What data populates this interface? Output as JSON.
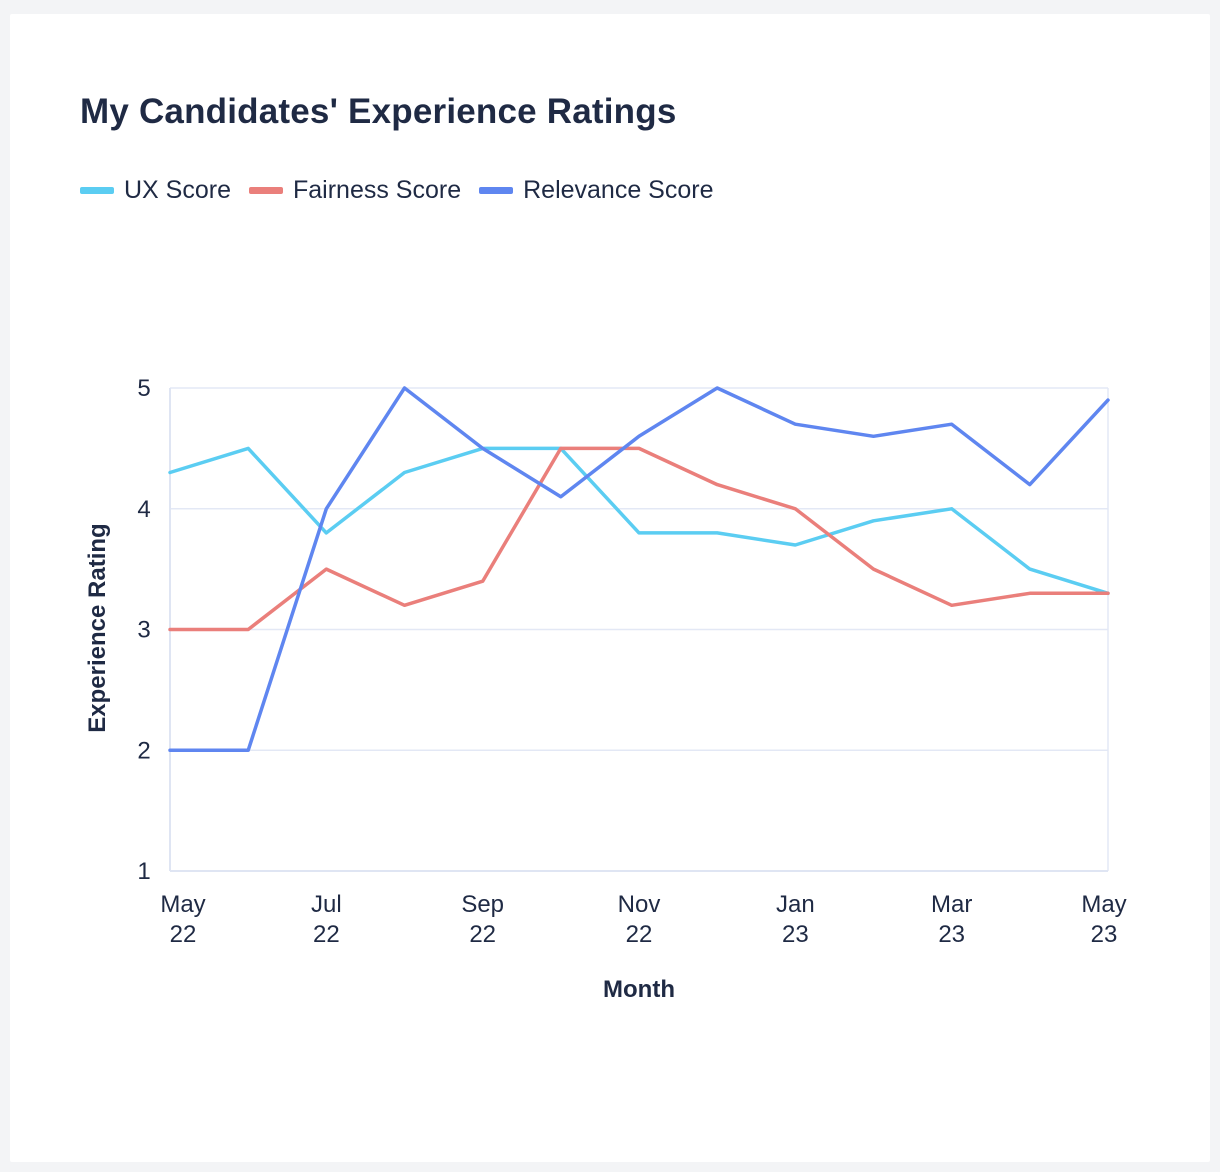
{
  "chart_data": {
    "type": "line",
    "title": "My Candidates' Experience Ratings",
    "xlabel": "Month",
    "ylabel": "Experience Rating",
    "x": [
      "May 22",
      "Jun 22",
      "Jul 22",
      "Aug 22",
      "Sep 22",
      "Oct 22",
      "Nov 22",
      "Dec 22",
      "Jan 23",
      "Feb 23",
      "Mar 23",
      "Apr 23",
      "May 23"
    ],
    "x_tick_labels": [
      {
        "index": 0,
        "line1": "May",
        "line2": "22"
      },
      {
        "index": 2,
        "line1": "Jul",
        "line2": "22"
      },
      {
        "index": 4,
        "line1": "Sep",
        "line2": "22"
      },
      {
        "index": 6,
        "line1": "Nov",
        "line2": "22"
      },
      {
        "index": 8,
        "line1": "Jan",
        "line2": "23"
      },
      {
        "index": 10,
        "line1": "Mar",
        "line2": "23"
      },
      {
        "index": 12,
        "line1": "May",
        "line2": "23"
      }
    ],
    "y_ticks": [
      1,
      2,
      3,
      4,
      5
    ],
    "ylim": [
      1,
      5
    ],
    "grid": true,
    "legend_position": "top-left",
    "series": [
      {
        "name": "UX Score",
        "color": "#5bcdf2",
        "values": [
          4.3,
          4.5,
          3.8,
          4.3,
          4.5,
          4.5,
          3.8,
          3.8,
          3.7,
          3.9,
          4.0,
          3.5,
          3.3
        ]
      },
      {
        "name": "Fairness Score",
        "color": "#ea7f7b",
        "values": [
          3.0,
          3.0,
          3.5,
          3.2,
          3.4,
          4.5,
          4.5,
          4.2,
          4.0,
          3.5,
          3.2,
          3.3,
          3.3
        ]
      },
      {
        "name": "Relevance Score",
        "color": "#5f86f0",
        "values": [
          2.0,
          2.0,
          4.0,
          5.0,
          4.5,
          4.1,
          4.6,
          5.0,
          4.7,
          4.6,
          4.7,
          4.2,
          4.9
        ]
      }
    ]
  },
  "colors": {
    "text": "#1f2a44",
    "grid": "#e3e8f5",
    "axis": "#dfe5f3"
  }
}
